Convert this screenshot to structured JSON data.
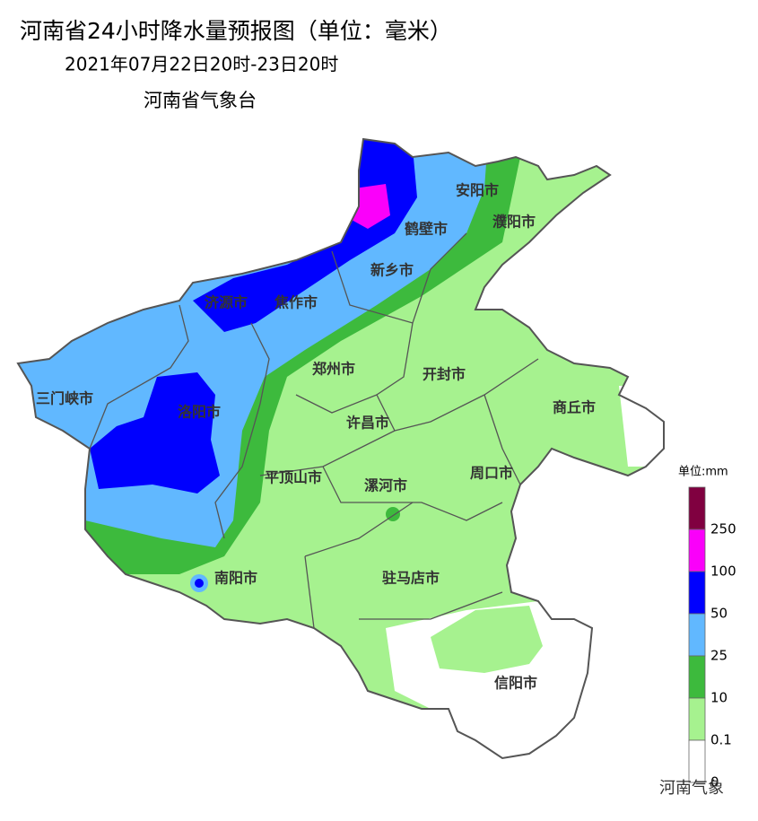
{
  "header": {
    "title": "河南省24小时降水量预报图（单位：毫米）",
    "subtitle": "2021年07月22日20时-23日20时",
    "issuer": "河南省气象台"
  },
  "cities": [
    "安阳市",
    "濮阳市",
    "鹤壁市",
    "新乡市",
    "济源市",
    "焦作市",
    "郑州市",
    "开封市",
    "三门峡市",
    "洛阳市",
    "商丘市",
    "许昌市",
    "平顶山市",
    "漯河市",
    "周口市",
    "南阳市",
    "驻马店市",
    "信阳市"
  ],
  "legend": {
    "title": "单位:mm",
    "colors": [
      "#800040",
      "#fa00fa",
      "#0000fe",
      "#61b8ff",
      "#3dba3d",
      "#a6f28f",
      "#ffffff"
    ],
    "labels": [
      250,
      100,
      50,
      25,
      10,
      0.1,
      0
    ]
  },
  "watermark": "河南气象"
}
